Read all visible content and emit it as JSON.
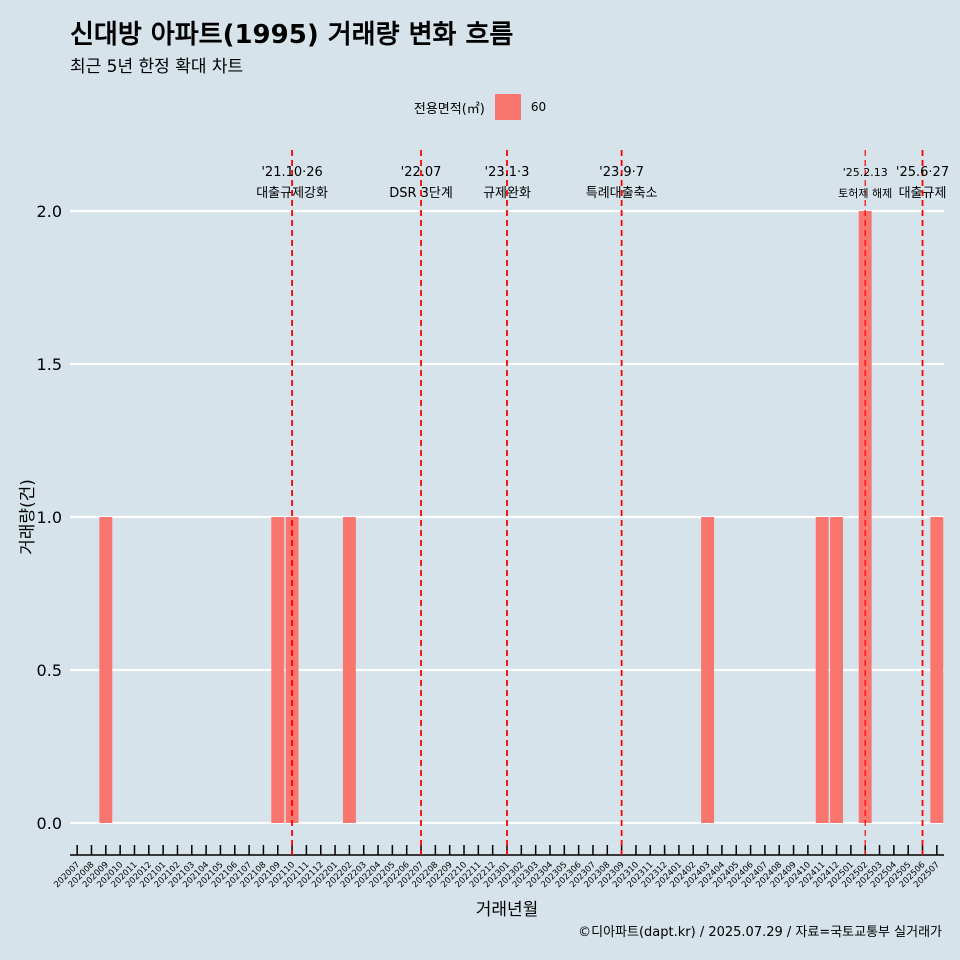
{
  "title": "신대방 아파트(1995) 거래량 변화 흐름",
  "subtitle": "최근 5년 한정 확대 차트",
  "caption": "©디아파트(dapt.kr) / 2025.07.29 / 자료=국토교통부 실거래가",
  "colors": {
    "background": "#d6e3ea",
    "bar": "#f8766d",
    "event_line": "#ff0000",
    "grid": "#ffffff"
  },
  "chart_data": {
    "type": "bar",
    "title": "신대방 아파트(1995) 거래량 변화 흐름",
    "subtitle": "최근 5년 한정 확대 차트",
    "xlabel": "거래년월",
    "ylabel": "거래량(건)",
    "ylim": [
      0,
      2
    ],
    "yticks": [
      0.0,
      0.5,
      1.0,
      1.5,
      2.0
    ],
    "ytick_labels": [
      "0.0",
      "0.5",
      "1.0",
      "1.5",
      "2.0"
    ],
    "grid": true,
    "legend": {
      "title": "전용면적(㎡)",
      "position": "top",
      "entries": [
        "60"
      ]
    },
    "categories": [
      "202007",
      "202008",
      "202009",
      "202010",
      "202011",
      "202012",
      "202101",
      "202102",
      "202103",
      "202104",
      "202105",
      "202106",
      "202107",
      "202108",
      "202109",
      "202110",
      "202111",
      "202112",
      "202201",
      "202202",
      "202203",
      "202204",
      "202205",
      "202206",
      "202207",
      "202208",
      "202209",
      "202210",
      "202211",
      "202212",
      "202301",
      "202302",
      "202303",
      "202304",
      "202305",
      "202306",
      "202307",
      "202308",
      "202309",
      "202310",
      "202311",
      "202312",
      "202401",
      "202402",
      "202403",
      "202404",
      "202405",
      "202406",
      "202407",
      "202408",
      "202409",
      "202410",
      "202411",
      "202412",
      "202501",
      "202502",
      "202503",
      "202504",
      "202505",
      "202506",
      "202507"
    ],
    "series": [
      {
        "name": "60",
        "color": "#f8766d",
        "values": [
          0,
          0,
          1,
          0,
          0,
          0,
          0,
          0,
          0,
          0,
          0,
          0,
          0,
          0,
          1,
          1,
          0,
          0,
          0,
          1,
          0,
          0,
          0,
          0,
          0,
          0,
          0,
          0,
          0,
          0,
          0,
          0,
          0,
          0,
          0,
          0,
          0,
          0,
          0,
          0,
          0,
          0,
          0,
          0,
          1,
          0,
          0,
          0,
          0,
          0,
          0,
          0,
          1,
          1,
          0,
          2,
          0,
          0,
          0,
          0,
          1
        ]
      }
    ],
    "annotations": [
      {
        "date": "202110",
        "offset": 0.5,
        "label1": "'21.10·26",
        "label2": "대출규제강화"
      },
      {
        "date": "202207",
        "offset": 0.5,
        "label1": "'22.07",
        "label2": "DSR 3단계"
      },
      {
        "date": "202301",
        "offset": 0.5,
        "label1": "'23.1·3",
        "label2": "규제완화"
      },
      {
        "date": "202309",
        "offset": 0.5,
        "label1": "'23.9·7",
        "label2": "특례대출축소"
      },
      {
        "date": "202502",
        "offset": 0.5,
        "label1": "'25.2.13",
        "label2": "토허제 해제",
        "small": true
      },
      {
        "date": "202506",
        "offset": 0.5,
        "label1": "'25.6·27",
        "label2": "대출규제"
      }
    ]
  }
}
